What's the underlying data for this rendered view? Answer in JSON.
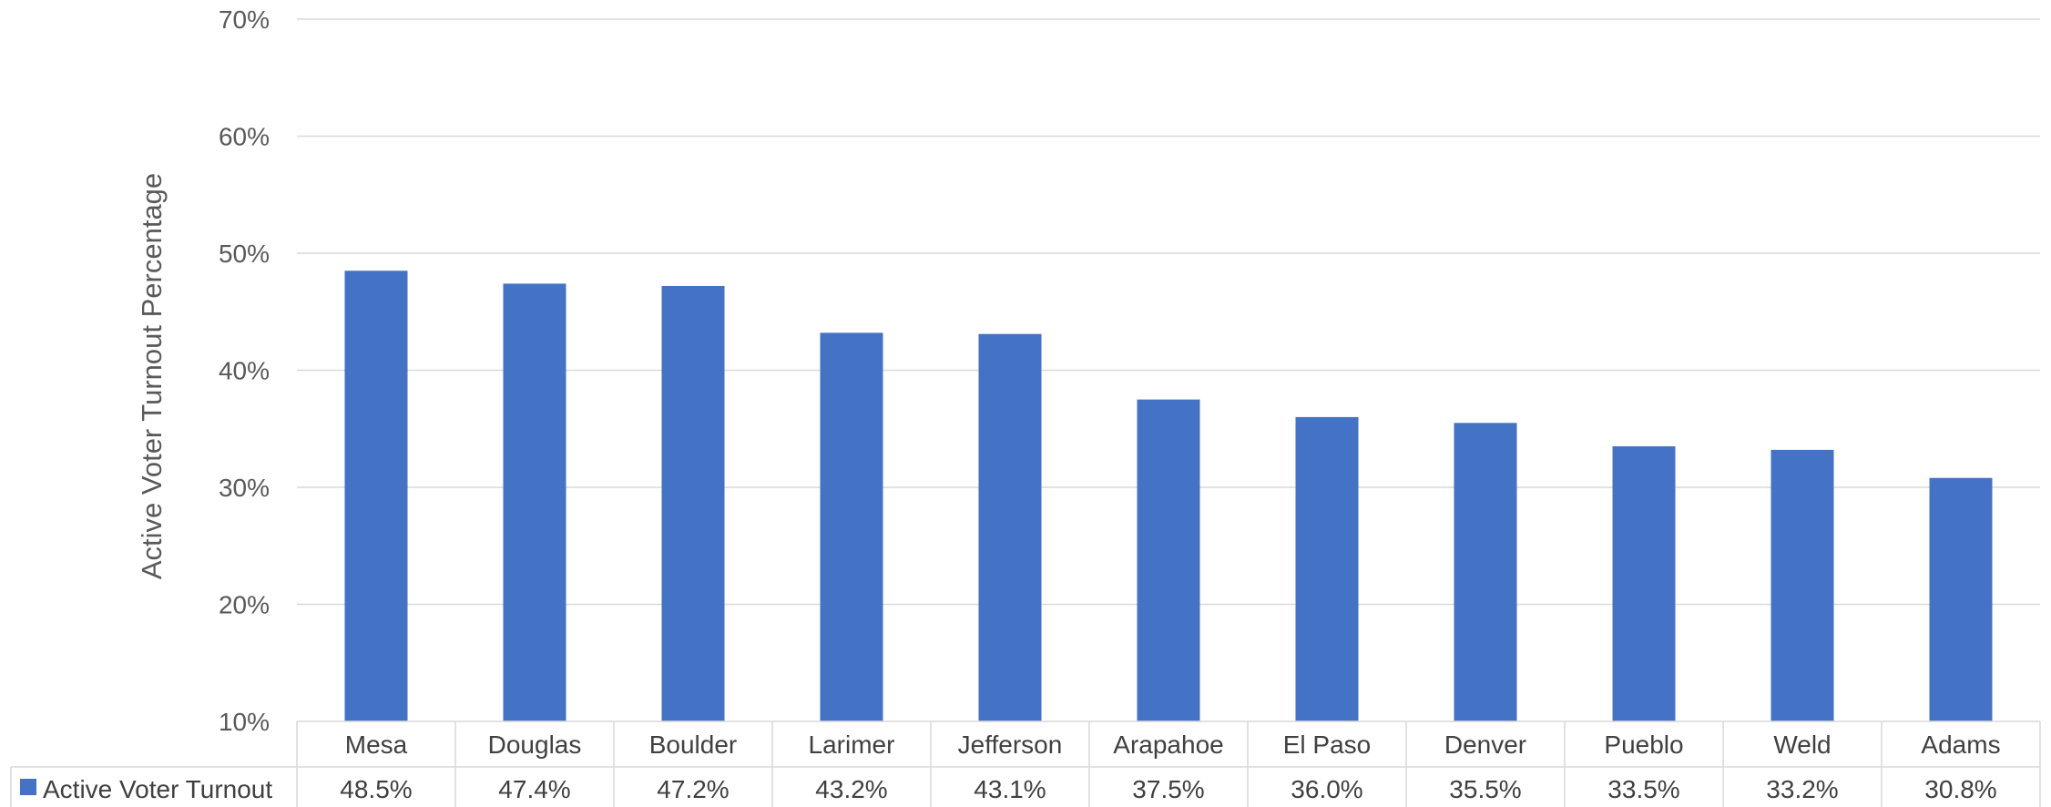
{
  "chart_data": {
    "type": "bar",
    "title": "",
    "xlabel": "",
    "ylabel": "Active Voter Turnout Percentage",
    "ylim": [
      10,
      70
    ],
    "y_ticks": [
      10,
      20,
      30,
      40,
      50,
      60,
      70
    ],
    "y_tick_labels": [
      "10%",
      "20%",
      "30%",
      "40%",
      "50%",
      "60%",
      "70%"
    ],
    "grid": true,
    "legend_placement": "data-table-left",
    "bar_color": "#4472C4",
    "categories": [
      "Mesa",
      "Douglas",
      "Boulder",
      "Larimer",
      "Jefferson",
      "Arapahoe",
      "El Paso",
      "Denver",
      "Pueblo",
      "Weld",
      "Adams"
    ],
    "series": [
      {
        "name": "Active Voter Turnout",
        "values": [
          48.5,
          47.4,
          47.2,
          43.2,
          43.1,
          37.5,
          36.0,
          35.5,
          33.5,
          33.2,
          30.8
        ],
        "value_labels": [
          "48.5%",
          "47.4%",
          "47.2%",
          "43.2%",
          "43.1%",
          "37.5%",
          "36.0%",
          "35.5%",
          "33.5%",
          "33.2%",
          "30.8%"
        ]
      }
    ]
  }
}
